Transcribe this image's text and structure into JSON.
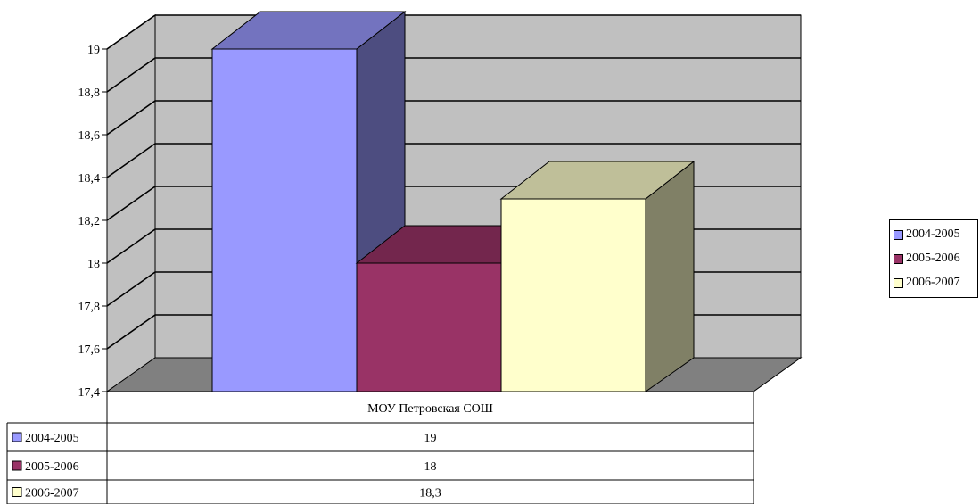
{
  "chart_data": {
    "type": "bar",
    "categories": [
      "МОУ Петровская СОШ"
    ],
    "series": [
      {
        "name": "2004-2005",
        "values": [
          19
        ],
        "label": "19",
        "color": "#9999FF"
      },
      {
        "name": "2005-2006",
        "values": [
          18
        ],
        "label": "18",
        "color": "#993366"
      },
      {
        "name": "2006-2007",
        "values": [
          18.3
        ],
        "label": "18,3",
        "color": "#FFFFCC"
      }
    ],
    "ylim": [
      17.4,
      19
    ],
    "yticks": [
      {
        "value": 17.4,
        "label": "17,4"
      },
      {
        "value": 17.6,
        "label": "17,6"
      },
      {
        "value": 17.8,
        "label": "17,8"
      },
      {
        "value": 18,
        "label": "18"
      },
      {
        "value": 18.2,
        "label": "18,2"
      },
      {
        "value": 18.4,
        "label": "18,4"
      },
      {
        "value": 18.6,
        "label": "18,6"
      },
      {
        "value": 18.8,
        "label": "18,8"
      },
      {
        "value": 19,
        "label": "19"
      }
    ],
    "grid": true,
    "legend_position": "right",
    "data_table": true,
    "style": "3d-clustered-column",
    "wall_color": "#C0C0C0",
    "floor_color": "#808080"
  }
}
